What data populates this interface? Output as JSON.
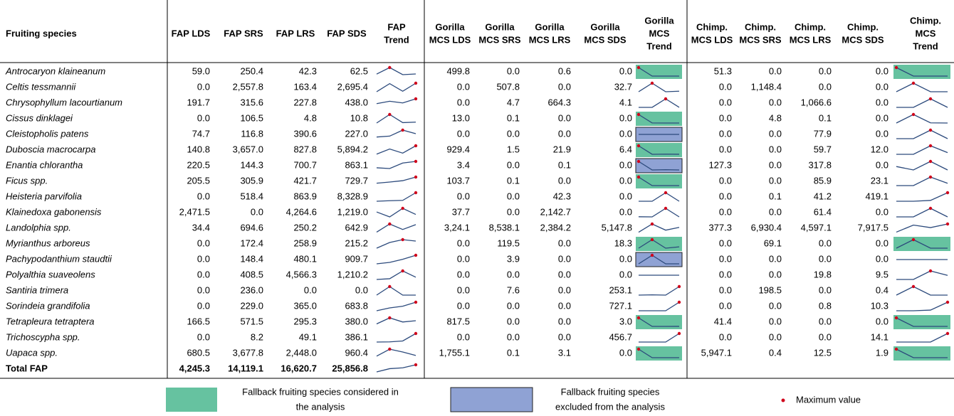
{
  "header": [
    [
      "Fruiting species"
    ],
    [
      "FAP LDS"
    ],
    [
      "FAP SRS"
    ],
    [
      "FAP LRS"
    ],
    [
      "FAP SDS"
    ],
    [
      "FAP",
      "Trend"
    ],
    [
      "Gorilla",
      "MCS LDS"
    ],
    [
      "Gorilla",
      "MCS SRS"
    ],
    [
      "Gorilla",
      "MCS LRS"
    ],
    [
      "Gorilla",
      "MCS SDS"
    ],
    [
      "Gorilla",
      "MCS",
      "Trend"
    ],
    [
      "Chimp.",
      "MCS LDS"
    ],
    [
      "Chimp.",
      "MCS SRS"
    ],
    [
      "Chimp.",
      "MCS LRS"
    ],
    [
      "Chimp.",
      "MCS SDS"
    ],
    [
      "Chimp.",
      "MCS",
      "Trend"
    ]
  ],
  "rows": [
    {
      "species": "Antrocaryon klaineanum",
      "fap": [
        "59.0",
        "250.4",
        "42.3",
        "62.5"
      ],
      "gorilla": [
        "499.8",
        "0.0",
        "0.6",
        "0.0"
      ],
      "chimp": [
        "51.3",
        "0.0",
        "0.0",
        "0.0"
      ],
      "gorilla_fill": "#66c2a0",
      "chimp_fill": "#66c2a0"
    },
    {
      "species": "Celtis tessmannii",
      "fap": [
        "0.0",
        "2,557.8",
        "163.4",
        "2,695.4"
      ],
      "gorilla": [
        "0.0",
        "507.8",
        "0.0",
        "32.7"
      ],
      "chimp": [
        "0.0",
        "1,148.4",
        "0.0",
        "0.0"
      ]
    },
    {
      "species": "Chrysophyllum lacourtianum",
      "fap": [
        "191.7",
        "315.6",
        "227.8",
        "438.0"
      ],
      "gorilla": [
        "0.0",
        "4.7",
        "664.3",
        "4.1"
      ],
      "chimp": [
        "0.0",
        "0.0",
        "1,066.6",
        "0.0"
      ]
    },
    {
      "species": "Cissus dinklagei",
      "fap": [
        "0.0",
        "106.5",
        "4.8",
        "10.8"
      ],
      "gorilla": [
        "13.0",
        "0.1",
        "0.0",
        "0.0"
      ],
      "chimp": [
        "0.0",
        "4.8",
        "0.1",
        "0.0"
      ],
      "gorilla_fill": "#66c2a0"
    },
    {
      "species": "Cleistopholis patens",
      "fap": [
        "74.7",
        "116.8",
        "390.6",
        "227.0"
      ],
      "gorilla": [
        "0.0",
        "0.0",
        "0.0",
        "0.0"
      ],
      "chimp": [
        "0.0",
        "0.0",
        "77.9",
        "0.0"
      ],
      "gorilla_fill": "#8fa2d4"
    },
    {
      "species": "Duboscia macrocarpa",
      "fap": [
        "140.8",
        "3,657.0",
        "827.8",
        "5,894.2"
      ],
      "gorilla": [
        "929.4",
        "1.5",
        "21.9",
        "6.4"
      ],
      "chimp": [
        "0.0",
        "0.0",
        "59.7",
        "12.0"
      ],
      "gorilla_fill": "#66c2a0"
    },
    {
      "species": "Enantia chlorantha",
      "fap": [
        "220.5",
        "144.3",
        "700.7",
        "863.1"
      ],
      "gorilla": [
        "3.4",
        "0.0",
        "0.1",
        "0.0"
      ],
      "chimp": [
        "127.3",
        "0.0",
        "317.8",
        "0.0"
      ],
      "gorilla_fill": "#8fa2d4"
    },
    {
      "species": "Ficus spp.",
      "fap": [
        "205.5",
        "305.9",
        "421.7",
        "729.7"
      ],
      "gorilla": [
        "103.7",
        "0.1",
        "0.0",
        "0.0"
      ],
      "chimp": [
        "0.0",
        "0.0",
        "85.9",
        "23.1"
      ],
      "gorilla_fill": "#66c2a0"
    },
    {
      "species": "Heisteria parvifolia",
      "fap": [
        "0.0",
        "518.4",
        "863.9",
        "8,328.9"
      ],
      "gorilla": [
        "0.0",
        "0.0",
        "42.3",
        "0.0"
      ],
      "chimp": [
        "0.0",
        "0.1",
        "41.2",
        "419.1"
      ]
    },
    {
      "species": "Klainedoxa gabonensis",
      "fap": [
        "2,471.5",
        "0.0",
        "4,264.6",
        "1,219.0"
      ],
      "gorilla": [
        "37.7",
        "0.0",
        "2,142.7",
        "0.0"
      ],
      "chimp": [
        "0.0",
        "0.0",
        "61.4",
        "0.0"
      ]
    },
    {
      "species": "Landolphia spp.",
      "fap": [
        "34.4",
        "694.6",
        "250.2",
        "642.9"
      ],
      "gorilla": [
        "3,24.1",
        "8,538.1",
        "2,384.2",
        "5,147.8"
      ],
      "chimp": [
        "377.3",
        "6,930.4",
        "4,597.1",
        "7,917.5"
      ]
    },
    {
      "species": "Myrianthus arboreus",
      "fap": [
        "0.0",
        "172.4",
        "258.9",
        "215.2"
      ],
      "gorilla": [
        "0.0",
        "119.5",
        "0.0",
        "18.3"
      ],
      "chimp": [
        "0.0",
        "69.1",
        "0.0",
        "0.0"
      ],
      "gorilla_fill": "#66c2a0",
      "chimp_fill": "#66c2a0"
    },
    {
      "species": "Pachypodanthium staudtii",
      "fap": [
        "0.0",
        "148.4",
        "480.1",
        "909.7"
      ],
      "gorilla": [
        "0.0",
        "3.9",
        "0.0",
        "0.0"
      ],
      "chimp": [
        "0.0",
        "0.0",
        "0.0",
        "0.0"
      ],
      "gorilla_fill": "#8fa2d4"
    },
    {
      "species": "Polyalthia suaveolens",
      "fap": [
        "0.0",
        "408.5",
        "4,566.3",
        "1,210.2"
      ],
      "gorilla": [
        "0.0",
        "0.0",
        "0.0",
        "0.0"
      ],
      "chimp": [
        "0.0",
        "0.0",
        "19.8",
        "9.5"
      ]
    },
    {
      "species": "Santiria trimera",
      "fap": [
        "0.0",
        "236.0",
        "0.0",
        "0.0"
      ],
      "gorilla": [
        "0.0",
        "7.6",
        "0.0",
        "253.1"
      ],
      "chimp": [
        "0.0",
        "198.5",
        "0.0",
        "0.4"
      ]
    },
    {
      "species": "Sorindeia grandifolia",
      "fap": [
        "0.0",
        "229.0",
        "365.0",
        "683.8"
      ],
      "gorilla": [
        "0.0",
        "0.0",
        "0.0",
        "727.1"
      ],
      "chimp": [
        "0.0",
        "0.0",
        "0.8",
        "10.3"
      ]
    },
    {
      "species": "Tetrapleura tetraptera",
      "fap": [
        "166.5",
        "571.5",
        "295.3",
        "380.0"
      ],
      "gorilla": [
        "817.5",
        "0.0",
        "0.0",
        "3.0"
      ],
      "chimp": [
        "41.4",
        "0.0",
        "0.0",
        "0.0"
      ],
      "gorilla_fill": "#66c2a0",
      "chimp_fill": "#66c2a0"
    },
    {
      "species": "Trichoscypha spp.",
      "fap": [
        "0.0",
        "8.2",
        "49.1",
        "386.1"
      ],
      "gorilla": [
        "0.0",
        "0.0",
        "0.0",
        "456.7"
      ],
      "chimp": [
        "0.0",
        "0.0",
        "0.0",
        "14.1"
      ]
    },
    {
      "species": "Uapaca spp.",
      "fap": [
        "680.5",
        "3,677.8",
        "2,448.0",
        "960.4"
      ],
      "gorilla": [
        "1,755.1",
        "0.1",
        "3.1",
        "0.0"
      ],
      "chimp": [
        "5,947.1",
        "0.4",
        "12.5",
        "1.9"
      ],
      "gorilla_fill": "#66c2a0",
      "chimp_fill": "#66c2a0"
    }
  ],
  "total": {
    "label": "Total FAP",
    "fap": [
      "4,245.3",
      "14,119.1",
      "16,620.7",
      "25,856.8"
    ]
  },
  "legend": [
    {
      "lines": [
        "Fallback fruiting species considered in",
        "the analysis"
      ],
      "color": "#66c2a0"
    },
    {
      "lines": [
        "Fallback fruiting species",
        "excluded from the analysis"
      ],
      "color": "#8fa2d4"
    },
    {
      "lines": [
        "Maximum value"
      ],
      "color": "#d0021b"
    }
  ]
}
